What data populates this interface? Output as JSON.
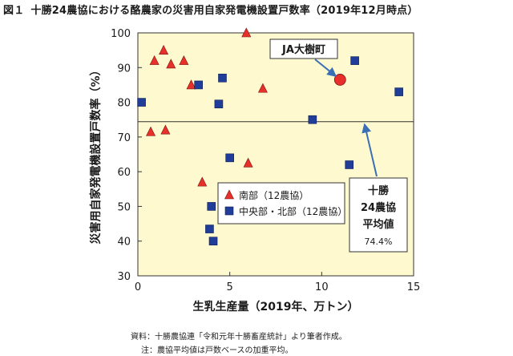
{
  "figure": {
    "label": "図１",
    "title": "十勝24農協における酪農家の災害用自家発電機設置戸数率（2019年12月時点）"
  },
  "chart_data": {
    "type": "scatter",
    "xlabel": "生乳生産量（2019年、万トン）",
    "ylabel": "災害用自家発電機設置戸数率（%）",
    "xlim": [
      0,
      15
    ],
    "ylim": [
      30,
      100
    ],
    "xticks": [
      0,
      5,
      10,
      15
    ],
    "yticks": [
      30,
      40,
      50,
      60,
      70,
      80,
      90,
      100
    ],
    "grid": false,
    "legend_position": "bottom-left-inside",
    "series": [
      {
        "name": "南部（12農協）",
        "marker": "triangle",
        "color": "#e8302a",
        "points": [
          {
            "x": 0.7,
            "y": 71.5
          },
          {
            "x": 0.9,
            "y": 92
          },
          {
            "x": 1.4,
            "y": 95
          },
          {
            "x": 1.5,
            "y": 72
          },
          {
            "x": 1.8,
            "y": 91
          },
          {
            "x": 2.5,
            "y": 92
          },
          {
            "x": 2.9,
            "y": 85
          },
          {
            "x": 3.5,
            "y": 57
          },
          {
            "x": 5.9,
            "y": 100
          },
          {
            "x": 6.0,
            "y": 62.5
          },
          {
            "x": 6.8,
            "y": 84
          }
        ]
      },
      {
        "name": "中央部・北部（12農協）",
        "marker": "square",
        "color": "#1f3d99",
        "points": [
          {
            "x": 0.2,
            "y": 80
          },
          {
            "x": 3.3,
            "y": 85
          },
          {
            "x": 3.9,
            "y": 43.5
          },
          {
            "x": 4.0,
            "y": 50
          },
          {
            "x": 4.1,
            "y": 40
          },
          {
            "x": 4.4,
            "y": 79.5
          },
          {
            "x": 4.6,
            "y": 87
          },
          {
            "x": 5.0,
            "y": 64
          },
          {
            "x": 9.5,
            "y": 75
          },
          {
            "x": 11.5,
            "y": 62
          },
          {
            "x": 11.8,
            "y": 92
          },
          {
            "x": 14.2,
            "y": 83
          }
        ]
      }
    ],
    "highlight": {
      "label": "JA大樹町",
      "x": 11.0,
      "y": 86.5,
      "color": "#e8302a"
    },
    "reference_line": {
      "y": 74.4,
      "annotation": [
        "十勝",
        "24農協",
        "平均値",
        "74.4%"
      ]
    }
  },
  "notes": [
    "資料：十勝農協連「令和元年十勝畜産統計」より筆者作成。",
    "注：農協平均値は戸数ベースの加重平均。"
  ]
}
